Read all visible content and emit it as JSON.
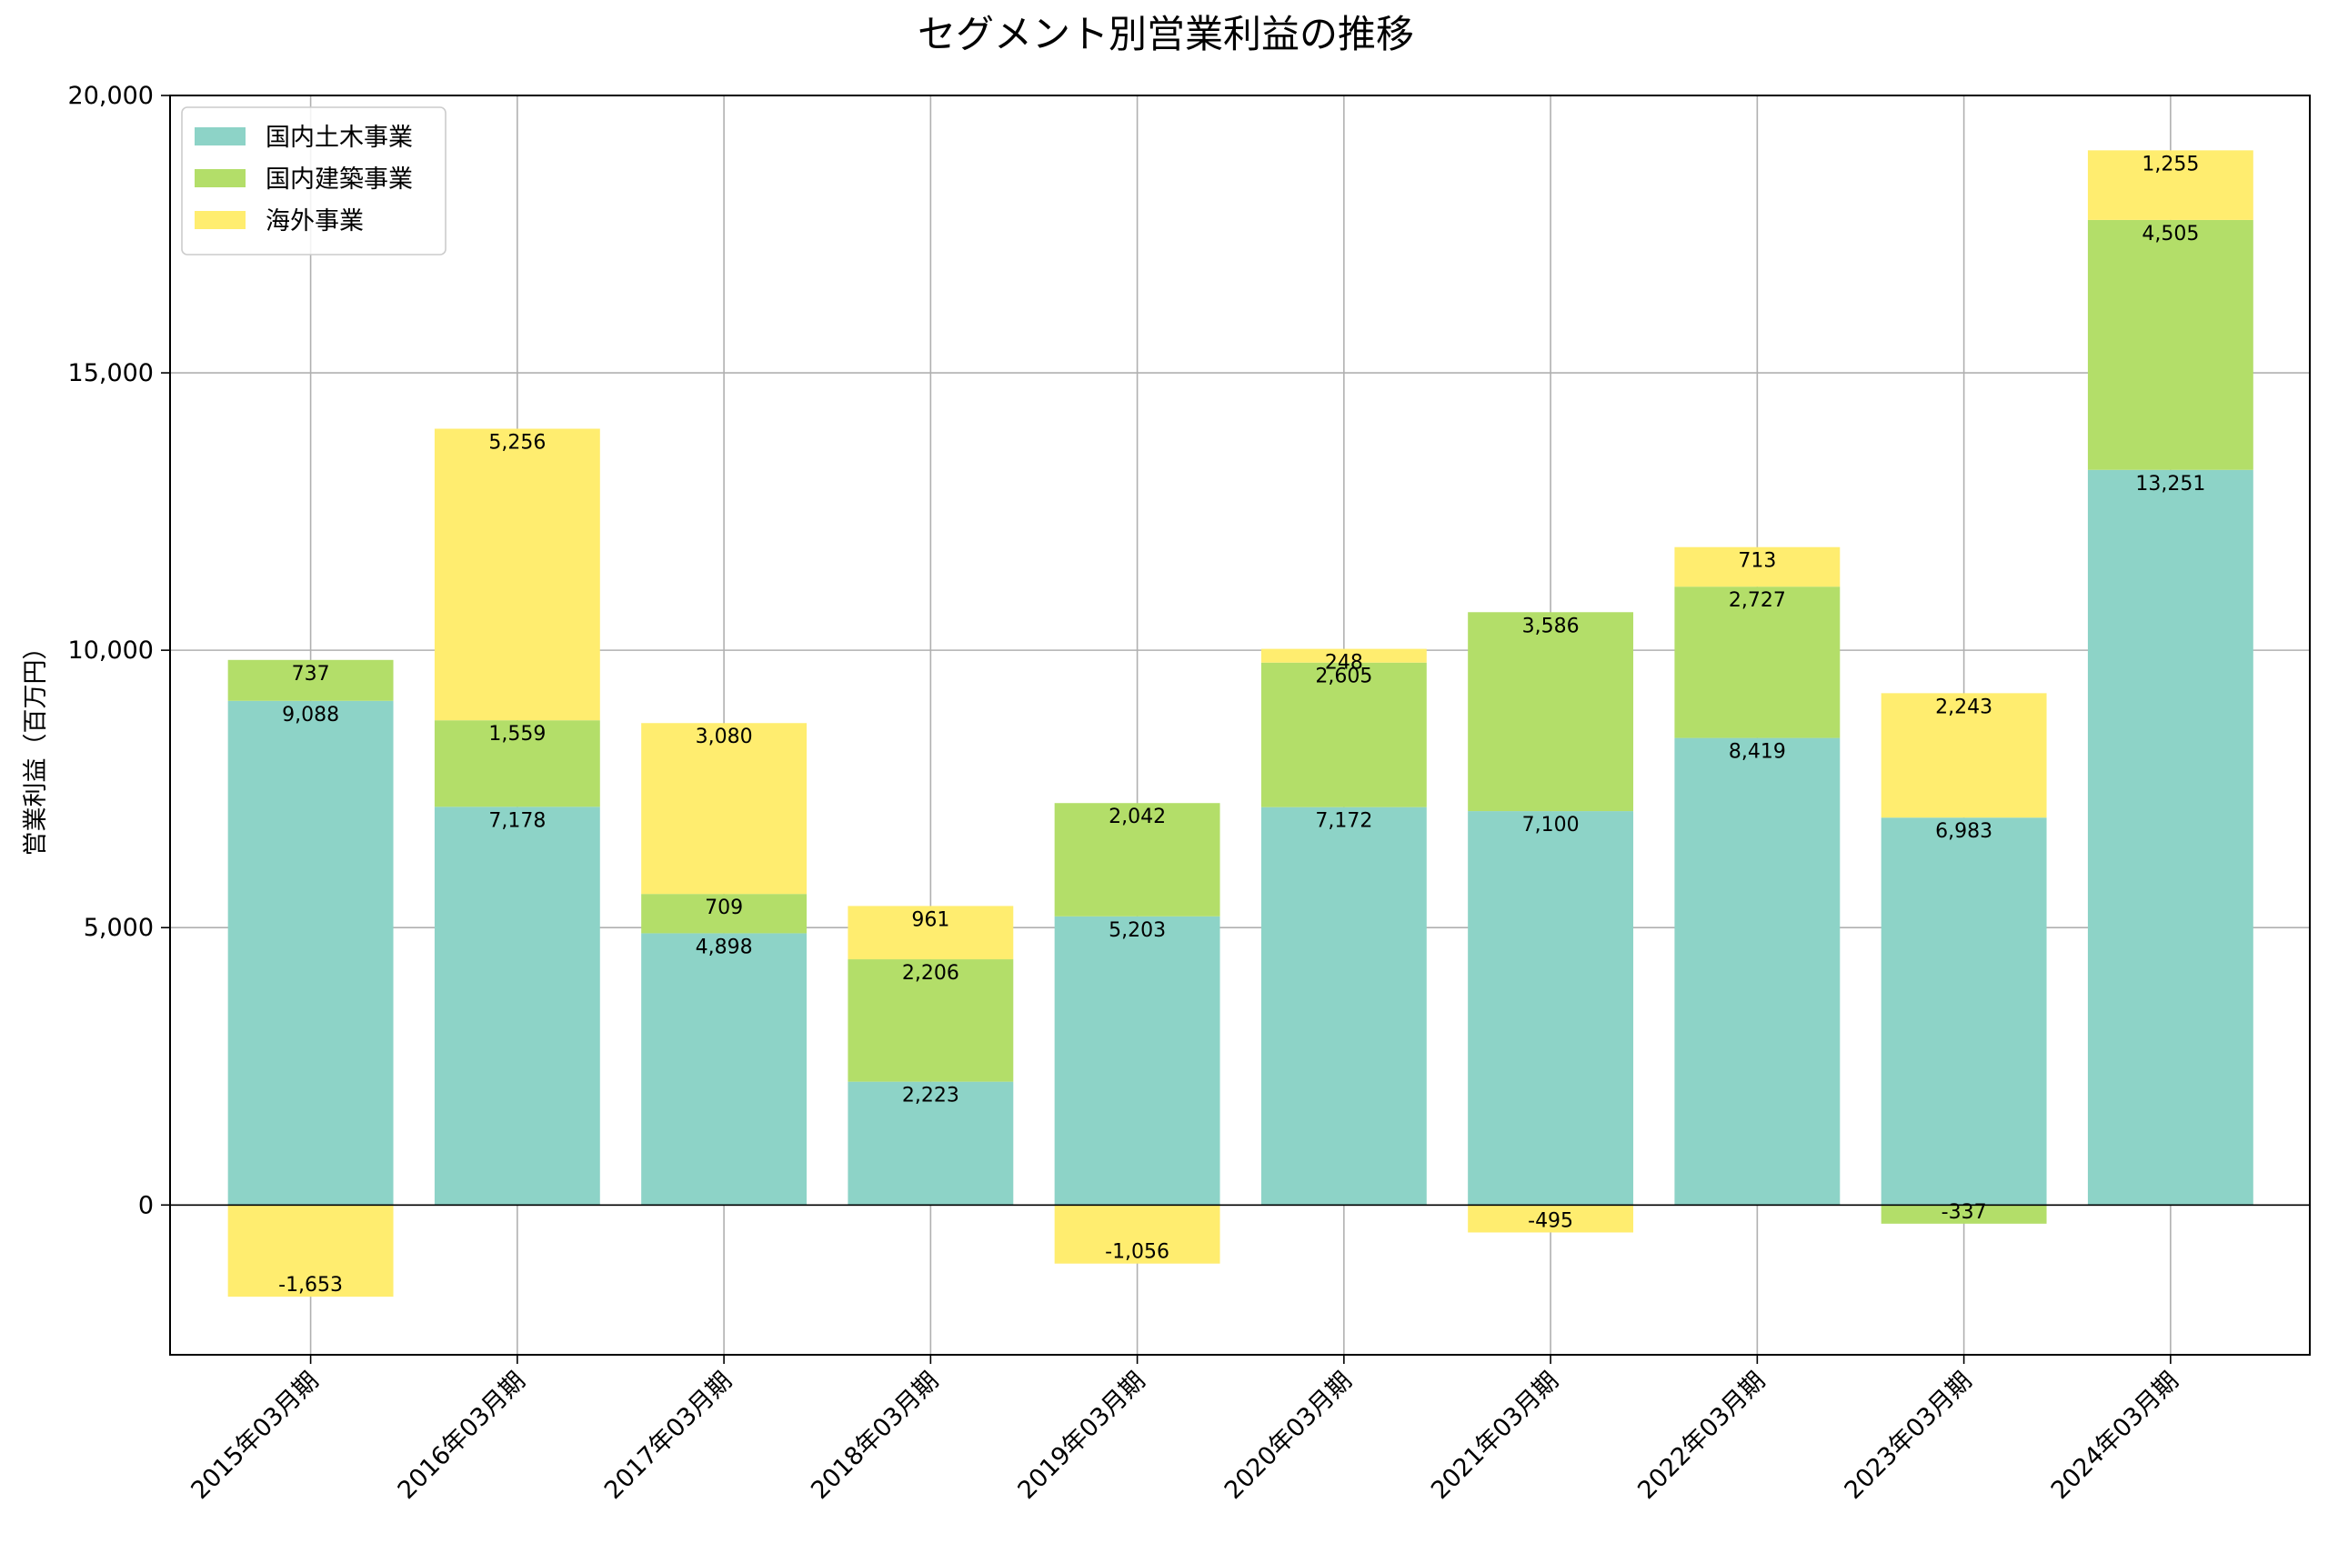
{
  "chart_data": {
    "type": "bar",
    "stacked": true,
    "title": "セグメント別営業利益の推移",
    "xlabel": "",
    "ylabel": "営業利益（百万円）",
    "ylim": [
      -2700,
      20000
    ],
    "yticks": [
      0,
      5000,
      10000,
      15000,
      20000
    ],
    "ytick_labels": [
      "0",
      "5,000",
      "10,000",
      "15,000",
      "20,000"
    ],
    "grid": true,
    "legend_position": "top-left",
    "categories": [
      "2015年03月期",
      "2016年03月期",
      "2017年03月期",
      "2018年03月期",
      "2019年03月期",
      "2020年03月期",
      "2021年03月期",
      "2022年03月期",
      "2023年03月期",
      "2024年03月期"
    ],
    "series": [
      {
        "name": "国内土木事業",
        "color": "#8dd3c7",
        "values": [
          9088,
          7178,
          4898,
          2223,
          5203,
          7172,
          7100,
          8419,
          6983,
          13251
        ],
        "labels": [
          "9,088",
          "7,178",
          "4,898",
          "2,223",
          "5,203",
          "7,172",
          "7,100",
          "8,419",
          "6,983",
          "13,251"
        ]
      },
      {
        "name": "国内建築事業",
        "color": "#b3de69",
        "values": [
          737,
          1559,
          709,
          2206,
          2042,
          2605,
          3586,
          2727,
          -337,
          4505
        ],
        "labels": [
          "737",
          "1,559",
          "709",
          "2,206",
          "2,042",
          "2,605",
          "3,586",
          "2,727",
          "-337",
          "4,505"
        ]
      },
      {
        "name": "海外事業",
        "color": "#ffed6f",
        "values": [
          -1653,
          5256,
          3080,
          961,
          -1056,
          248,
          -495,
          713,
          2243,
          1255
        ],
        "labels": [
          "-1,653",
          "5,256",
          "3,080",
          "961",
          "-1,056",
          "248",
          "-495",
          "713",
          "2,243",
          "1,255"
        ]
      }
    ]
  }
}
